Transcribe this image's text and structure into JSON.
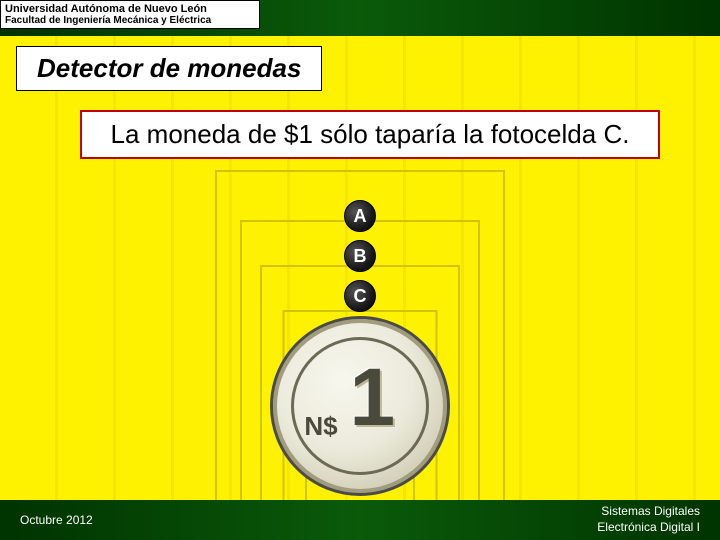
{
  "header": {
    "institution": "Universidad Autónoma de Nuevo León",
    "faculty": "Facultad de Ingeniería Mecánica y Eléctrica"
  },
  "title": "Detector de monedas",
  "statement": "La moneda de $1 sólo taparía la fotocelda C.",
  "diagram": {
    "cells": [
      "A",
      "B",
      "C"
    ],
    "coin": {
      "prefix": "N$",
      "value": "1"
    },
    "colors": {
      "cell_bg": "#1a1a1a",
      "cell_text": "#ffffff",
      "coin_fill": "#eceadb",
      "coin_border": "#4a4a4a",
      "coin_engraving": "#4a4a3c",
      "square_stroke": "#d3c400"
    }
  },
  "background": {
    "base": "#fff200",
    "stripe": "#f5e600",
    "header_footer": "#003300"
  },
  "footer": {
    "date": "Octubre 2012",
    "course_line1": "Sistemas Digitales",
    "course_line2": "Electrónica Digital I"
  }
}
